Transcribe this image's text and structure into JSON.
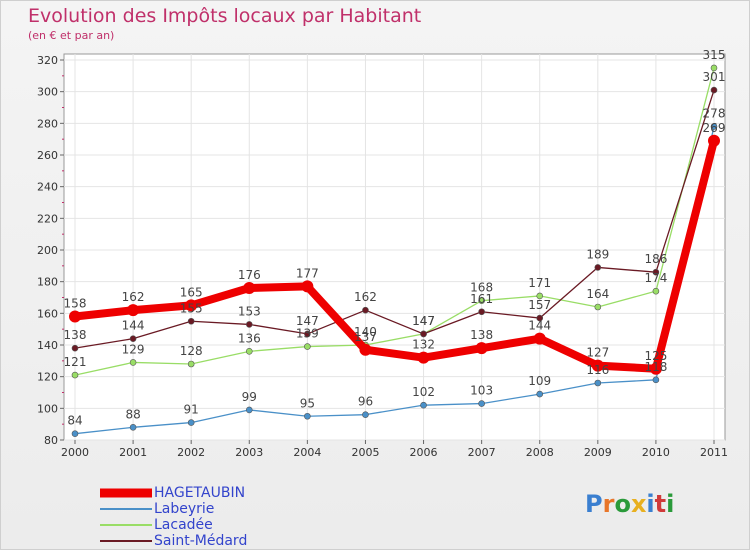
{
  "title": "Evolution des Impôts locaux par Habitant",
  "subtitle": "(en € et par an)",
  "brand": "Proxiti",
  "colors": {
    "title": "#c0306a",
    "legend_text": "#3344cc",
    "axis_text": "#333333"
  },
  "chart_data": {
    "type": "line",
    "title": "Evolution des Impôts locaux par Habitant",
    "ylabel": "(en € et par an)",
    "xlabel": "",
    "categories": [
      "2000",
      "2001",
      "2002",
      "2003",
      "2004",
      "2005",
      "2006",
      "2007",
      "2008",
      "2009",
      "2010",
      "2011"
    ],
    "ylim": [
      80,
      320
    ],
    "yticks": [
      80,
      100,
      120,
      140,
      160,
      180,
      200,
      220,
      240,
      260,
      280,
      300,
      320
    ],
    "grid": true,
    "legend_position": "bottom-left",
    "series": [
      {
        "name": "HAGETAUBIN",
        "color": "#ee0000",
        "weight": "bold",
        "values": [
          158,
          162,
          165,
          176,
          177,
          137,
          132,
          138,
          144,
          127,
          125,
          269
        ],
        "labels": [
          "158",
          "162",
          "165",
          "176",
          "177",
          "137",
          "132",
          "138",
          "144",
          "127",
          "125",
          "269"
        ]
      },
      {
        "name": "Labeyrie",
        "color": "#4a90c8",
        "weight": "thin",
        "values": [
          84,
          88,
          91,
          99,
          95,
          96,
          102,
          103,
          109,
          116,
          118,
          278
        ],
        "labels": [
          "84",
          "88",
          "91",
          "99",
          "95",
          "96",
          "102",
          "103",
          "109",
          "116",
          "118",
          "278"
        ]
      },
      {
        "name": "Lacadée",
        "color": "#99dd66",
        "weight": "thin",
        "values": [
          121,
          129,
          128,
          136,
          139,
          140,
          147,
          168,
          171,
          164,
          174,
          315
        ],
        "labels": [
          "121",
          "129",
          "128",
          "136",
          "139",
          "140",
          "147",
          "168",
          "171",
          "164",
          "174",
          "315"
        ]
      },
      {
        "name": "Saint-Médard",
        "color": "#6a1a24",
        "weight": "thin",
        "values": [
          138,
          144,
          155,
          153,
          147,
          162,
          147,
          161,
          157,
          189,
          186,
          301
        ],
        "labels": [
          "138",
          "144",
          "155",
          "153",
          "147",
          "162",
          "147",
          "161",
          "157",
          "189",
          "186",
          "301"
        ]
      }
    ]
  }
}
